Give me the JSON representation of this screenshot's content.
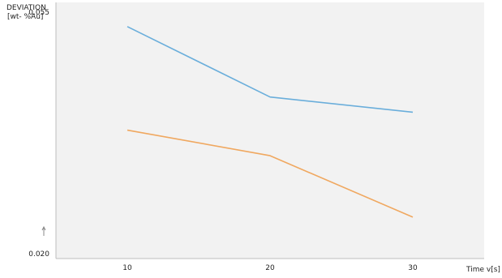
{
  "chart_data": {
    "type": "line",
    "ylabel_line1": "DEVIATION",
    "ylabel_line2": "[wt- %Au]",
    "xlabel": "Time v[s]",
    "x": [
      10,
      20,
      30
    ],
    "x_ticks": [
      "10",
      "20",
      "30"
    ],
    "y_ticks": [
      "0.055",
      "0.020"
    ],
    "y_tick_values": [
      0.055,
      0.02
    ],
    "xlim": [
      5,
      35
    ],
    "ylim": [
      0.0193,
      0.0564
    ],
    "grid": false,
    "series": [
      {
        "color": "#6aaedb",
        "values": [
          0.0529,
          0.0427,
          0.0405
        ]
      },
      {
        "color": "#f0a860",
        "values": [
          0.0379,
          0.0342,
          0.0253
        ]
      }
    ],
    "plot_background": "#f2f2f2"
  }
}
